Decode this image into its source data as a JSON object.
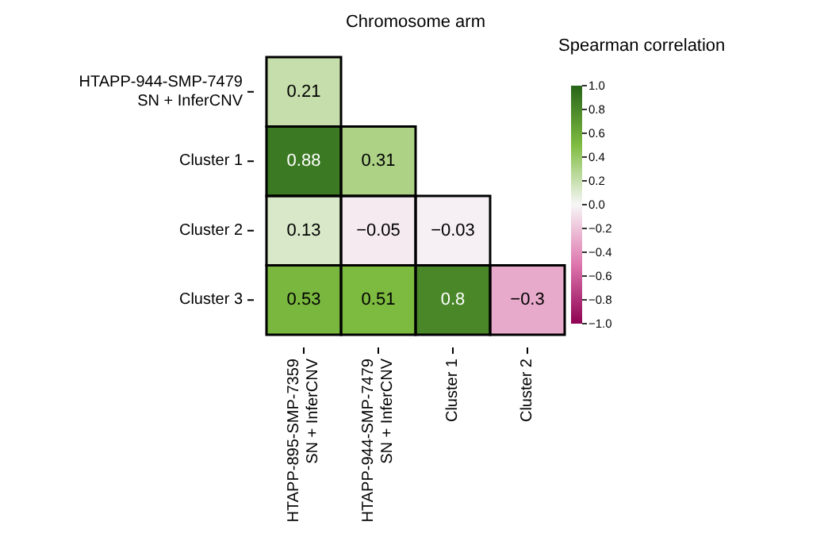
{
  "chart_data": {
    "type": "heatmap",
    "title": "Chromosome arm",
    "legend_title": "Spearman correlation",
    "categories": [
      "HTAPP-895-SMP-7359\nSN + InferCNV",
      "HTAPP-944-SMP-7479\nSN + InferCNV",
      "Cluster 1",
      "Cluster 2"
    ],
    "y_categories": [
      "HTAPP-944-SMP-7479\nSN + InferCNV",
      "Cluster 1",
      "Cluster 2",
      "Cluster 3"
    ],
    "cells": [
      [
        0.21,
        null,
        null,
        null
      ],
      [
        0.88,
        0.31,
        null,
        null
      ],
      [
        0.13,
        -0.05,
        -0.03,
        null
      ],
      [
        0.53,
        0.51,
        0.8,
        -0.3
      ]
    ],
    "cell_labels": [
      [
        "0.21",
        null,
        null,
        null
      ],
      [
        "0.88",
        "0.31",
        null,
        null
      ],
      [
        "0.13",
        "−0.05",
        "−0.03",
        null
      ],
      [
        "0.53",
        "0.51",
        "0.8",
        "−0.3"
      ]
    ],
    "clim": [
      -1,
      1
    ],
    "cticks": [
      {
        "value": 1,
        "label": "1.0"
      },
      {
        "value": 0.8,
        "label": "0.8"
      },
      {
        "value": 0.6,
        "label": "0.6"
      },
      {
        "value": 0.4,
        "label": "0.4"
      },
      {
        "value": 0.2,
        "label": "0.2"
      },
      {
        "value": 0,
        "label": "0.0"
      },
      {
        "value": -0.2,
        "label": "−0.2"
      },
      {
        "value": -0.4,
        "label": "−0.4"
      },
      {
        "value": -0.6,
        "label": "−0.6"
      },
      {
        "value": -0.8,
        "label": "−0.8"
      },
      {
        "value": -1,
        "label": "−1.0"
      }
    ]
  }
}
